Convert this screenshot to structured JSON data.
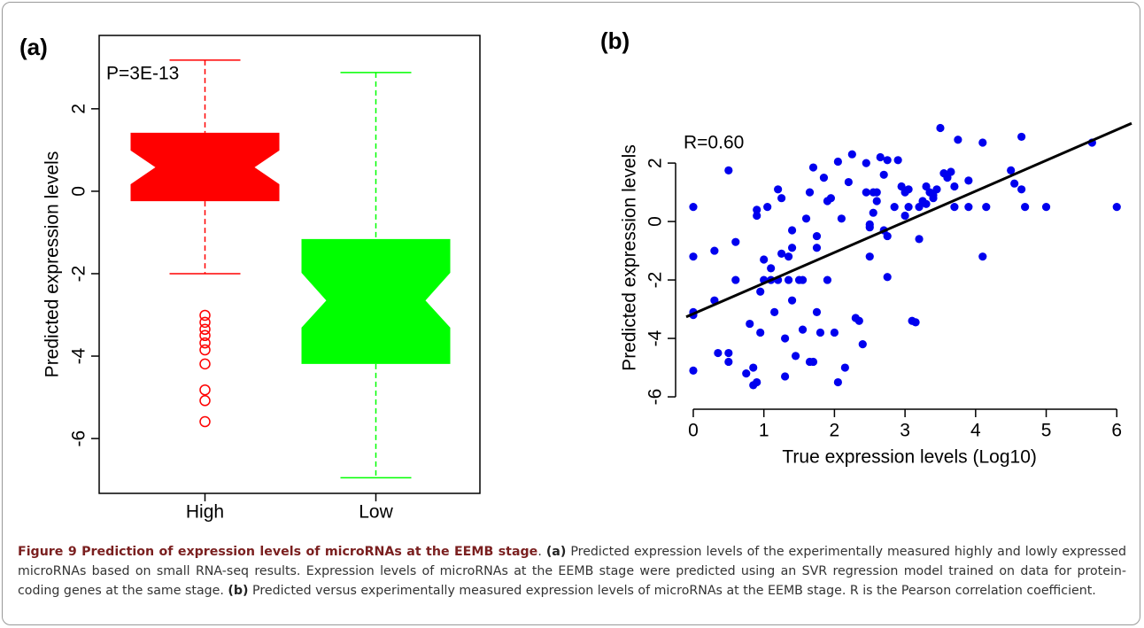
{
  "chart_data": [
    {
      "type": "box",
      "panel_label": "(a)",
      "annotation": "P=3E-13",
      "ylabel": "Predicted expression levels",
      "categories": [
        "High",
        "Low"
      ],
      "colors": [
        "#ff0000",
        "#00ff00"
      ],
      "boxes": [
        {
          "whisker_low": -2.0,
          "q1": -0.24,
          "notch_low": 0.17,
          "median": 0.58,
          "notch_high": 0.99,
          "q3": 1.42,
          "whisker_high": 3.18,
          "outliers": [
            -3.01,
            -3.18,
            -3.35,
            -3.5,
            -3.68,
            -3.85,
            -4.19,
            -4.82,
            -5.08,
            -5.59
          ]
        },
        {
          "whisker_low": -6.95,
          "q1": -4.19,
          "notch_low": -3.31,
          "median": -2.65,
          "notch_high": -1.98,
          "q3": -1.16,
          "whisker_high": 2.88,
          "outliers": []
        }
      ],
      "ylim": [
        -7.33,
        3.78
      ],
      "yticks": [
        -6,
        -4,
        -2,
        0,
        2
      ]
    },
    {
      "type": "scatter",
      "panel_label": "(b)",
      "annotation": "R=0.60",
      "xlabel": "True expression levels (Log10)",
      "ylabel": "Predicted expression levels",
      "color": "#0000ee",
      "fit": {
        "intercept": -3.16,
        "slope": 1.05,
        "color": "#000000"
      },
      "x": [
        0,
        0,
        0,
        0,
        0,
        0.3,
        0.35,
        0.5,
        0.5,
        0.5,
        0.6,
        0.6,
        0.75,
        0.8,
        0.85,
        0.85,
        0.9,
        0.9,
        0.9,
        0.95,
        0.95,
        1,
        1,
        1.05,
        1.1,
        1.1,
        1.15,
        1.2,
        1.2,
        1.25,
        1.25,
        1.3,
        1.3,
        1.35,
        1.35,
        1.4,
        1.4,
        1.4,
        1.45,
        1.5,
        1.55,
        1.55,
        1.6,
        1.65,
        1.7,
        1.7,
        1.75,
        1.75,
        1.75,
        1.8,
        1.85,
        1.9,
        1.9,
        1.95,
        2,
        2.05,
        2.05,
        2.1,
        2.15,
        2.2,
        2.25,
        2.3,
        2.35,
        2.4,
        2.45,
        2.45,
        2.5,
        2.5,
        2.5,
        2.55,
        2.55,
        2.6,
        2.6,
        2.65,
        2.7,
        2.7,
        2.75,
        2.75,
        2.75,
        2.85,
        2.9,
        2.95,
        3,
        3,
        3.05,
        3.05,
        3.1,
        3.15,
        3.2,
        3.2,
        3.25,
        3.3,
        3.3,
        3.35,
        3.4,
        3.4,
        3.45,
        3.5,
        3.55,
        3.6,
        3.65,
        3.7,
        3.7,
        3.75,
        3.9,
        3.9,
        4.1,
        4.1,
        4.15,
        4.5,
        4.55,
        4.65,
        4.65,
        4.7,
        5,
        5.65,
        6,
        0.3,
        1.65
      ],
      "y": [
        0.5,
        -1.2,
        -3.1,
        -3.2,
        -5.1,
        -2.7,
        -4.5,
        1.75,
        -4.5,
        -4.8,
        -2,
        -0.7,
        -5.2,
        -3.5,
        -5,
        -5.6,
        -5.5,
        0.4,
        0.2,
        -3.8,
        -2.4,
        -2,
        -1.3,
        0.5,
        -2,
        -1.6,
        -3.1,
        1.1,
        -2,
        0.8,
        -1.1,
        -5.3,
        -4,
        -2,
        -1.2,
        -0.9,
        -0.3,
        -2.7,
        -4.6,
        -2,
        -2,
        -3.7,
        0.1,
        1,
        1.85,
        -4.8,
        -0.5,
        -0.9,
        -3.1,
        -3.8,
        1.5,
        0.7,
        -2,
        0.8,
        -3.8,
        2.05,
        -5.5,
        0.1,
        -5,
        1.35,
        2.3,
        -3.3,
        -3.4,
        -4.2,
        2,
        1,
        -1.2,
        -0.1,
        -0.2,
        0.3,
        1,
        0.7,
        1,
        2.2,
        -0.3,
        1.6,
        -0.5,
        2.1,
        -1.9,
        0.5,
        2.1,
        1.2,
        1,
        0.2,
        1.1,
        0.5,
        -3.4,
        -3.45,
        -0.6,
        0.5,
        0.7,
        1.2,
        0.6,
        1,
        0.9,
        0.8,
        1.1,
        3.2,
        1.65,
        1.5,
        1.7,
        0.5,
        1.2,
        2.8,
        0.5,
        1.4,
        2.7,
        -1.2,
        0.5,
        1.75,
        1.3,
        1.1,
        2.9,
        0.5,
        0.5,
        2.7,
        0.5,
        -1,
        -4.8
      ],
      "xlim": [
        -0.1,
        6.21
      ],
      "ylim": [
        -6.12,
        3.64
      ],
      "xticks": [
        0,
        1,
        2,
        3,
        4,
        5,
        6
      ],
      "yticks": [
        -6,
        -4,
        -2,
        0,
        2
      ]
    }
  ],
  "caption": {
    "heading": "Figure 9 Prediction of expression levels of microRNAs at the EEMB stage",
    "parts": [
      {
        "text": ". ",
        "bold": false
      },
      {
        "text": "(a)",
        "bold": true
      },
      {
        "text": " Predicted expression levels of the experimentally measured highly and lowly expressed microRNAs based on small RNA-seq results. Expression levels of microRNAs at the EEMB stage were predicted using an SVR regression model trained on data for protein-coding genes at the same stage. ",
        "bold": false
      },
      {
        "text": "(b)",
        "bold": true
      },
      {
        "text": " Predicted versus experimentally measured expression levels of microRNAs at the EEMB stage. R is the Pearson correlation coefficient.",
        "bold": false
      }
    ]
  }
}
